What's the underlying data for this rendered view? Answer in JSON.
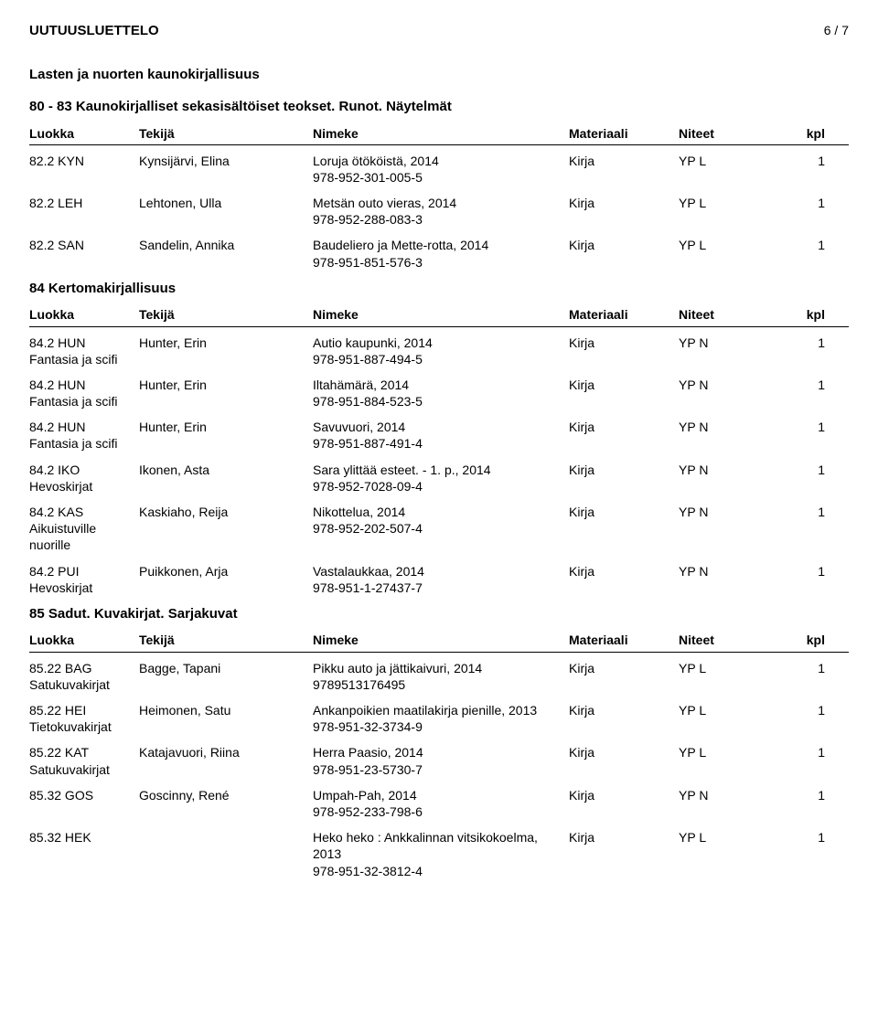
{
  "page": {
    "title": "UUTUUSLUETTELO",
    "page_num": "6 / 7"
  },
  "columns": {
    "luokka": "Luokka",
    "tekija": "Tekijä",
    "nimeke": "Nimeke",
    "materiaali": "Materiaali",
    "niteet": "Niteet",
    "kpl": "kpl"
  },
  "sections": [
    {
      "heading": "Lasten ja nuorten kaunokirjallisuus",
      "subsections": [
        {
          "heading": "80 - 83 Kaunokirjalliset sekasisältöiset teokset. Runot. Näytelmät",
          "rows": [
            {
              "luokka": "82.2 KYN",
              "luokka_sub": "",
              "tekija": "Kynsijärvi, Elina",
              "nimeke": "Loruja ötököistä, 2014",
              "isbn": "978-952-301-005-5",
              "materiaali": "Kirja",
              "niteet": "YP L",
              "kpl": "1"
            },
            {
              "luokka": "82.2 LEH",
              "luokka_sub": "",
              "tekija": "Lehtonen, Ulla",
              "nimeke": "Metsän outo vieras, 2014",
              "isbn": "978-952-288-083-3",
              "materiaali": "Kirja",
              "niteet": "YP L",
              "kpl": "1"
            },
            {
              "luokka": "82.2 SAN",
              "luokka_sub": "",
              "tekija": "Sandelin, Annika",
              "nimeke": "Baudeliero ja Mette-rotta, 2014",
              "isbn": "978-951-851-576-3",
              "materiaali": "Kirja",
              "niteet": "YP L",
              "kpl": "1"
            }
          ]
        },
        {
          "heading": "84 Kertomakirjallisuus",
          "rows": [
            {
              "luokka": "84.2 HUN",
              "luokka_sub": "Fantasia ja scifi",
              "tekija": "Hunter, Erin",
              "nimeke": "Autio kaupunki, 2014",
              "isbn": "978-951-887-494-5",
              "materiaali": "Kirja",
              "niteet": "YP N",
              "kpl": "1"
            },
            {
              "luokka": "84.2 HUN",
              "luokka_sub": "Fantasia ja scifi",
              "tekija": "Hunter, Erin",
              "nimeke": "Iltahämärä, 2014",
              "isbn": "978-951-884-523-5",
              "materiaali": "Kirja",
              "niteet": "YP N",
              "kpl": "1"
            },
            {
              "luokka": "84.2 HUN",
              "luokka_sub": "Fantasia ja scifi",
              "tekija": "Hunter, Erin",
              "nimeke": "Savuvuori, 2014",
              "isbn": "978-951-887-491-4",
              "materiaali": "Kirja",
              "niteet": "YP N",
              "kpl": "1"
            },
            {
              "luokka": "84.2 IKO",
              "luokka_sub": "Hevoskirjat",
              "tekija": "Ikonen, Asta",
              "nimeke": "Sara ylittää esteet. - 1. p., 2014",
              "isbn": "978-952-7028-09-4",
              "materiaali": "Kirja",
              "niteet": "YP N",
              "kpl": "1"
            },
            {
              "luokka": "84.2 KAS",
              "luokka_sub": "Aikuistuville nuorille",
              "tekija": "Kaskiaho, Reija",
              "nimeke": "Nikottelua, 2014",
              "isbn": "978-952-202-507-4",
              "materiaali": "Kirja",
              "niteet": "YP N",
              "kpl": "1"
            },
            {
              "luokka": "84.2 PUI",
              "luokka_sub": "Hevoskirjat",
              "tekija": "Puikkonen, Arja",
              "nimeke": "Vastalaukkaa, 2014",
              "isbn": "978-951-1-27437-7",
              "materiaali": "Kirja",
              "niteet": "YP N",
              "kpl": "1"
            }
          ]
        },
        {
          "heading": "85 Sadut. Kuvakirjat. Sarjakuvat",
          "rows": [
            {
              "luokka": "85.22 BAG",
              "luokka_sub": "Satukuvakirjat",
              "tekija": "Bagge, Tapani",
              "nimeke": "Pikku auto ja jättikaivuri, 2014",
              "isbn": "9789513176495",
              "materiaali": "Kirja",
              "niteet": "YP L",
              "kpl": "1"
            },
            {
              "luokka": "85.22 HEI",
              "luokka_sub": "Tietokuvakirjat",
              "tekija": "Heimonen, Satu",
              "nimeke": "Ankanpoikien maatilakirja pienille, 2013",
              "isbn": "978-951-32-3734-9",
              "materiaali": "Kirja",
              "niteet": "YP L",
              "kpl": "1"
            },
            {
              "luokka": "85.22 KAT",
              "luokka_sub": "Satukuvakirjat",
              "tekija": "Katajavuori, Riina",
              "nimeke": "Herra Paasio, 2014",
              "isbn": "978-951-23-5730-7",
              "materiaali": "Kirja",
              "niteet": "YP L",
              "kpl": "1"
            },
            {
              "luokka": "85.32 GOS",
              "luokka_sub": "",
              "tekija": "Goscinny, René",
              "nimeke": "Umpah-Pah, 2014",
              "isbn": "978-952-233-798-6",
              "materiaali": "Kirja",
              "niteet": "YP N",
              "kpl": "1"
            },
            {
              "luokka": "85.32 HEK",
              "luokka_sub": "",
              "tekija": "",
              "nimeke": "Heko heko : Ankkalinnan vitsikokoelma, 2013",
              "isbn": "978-951-32-3812-4",
              "materiaali": "Kirja",
              "niteet": "YP L",
              "kpl": "1"
            }
          ]
        }
      ]
    }
  ]
}
